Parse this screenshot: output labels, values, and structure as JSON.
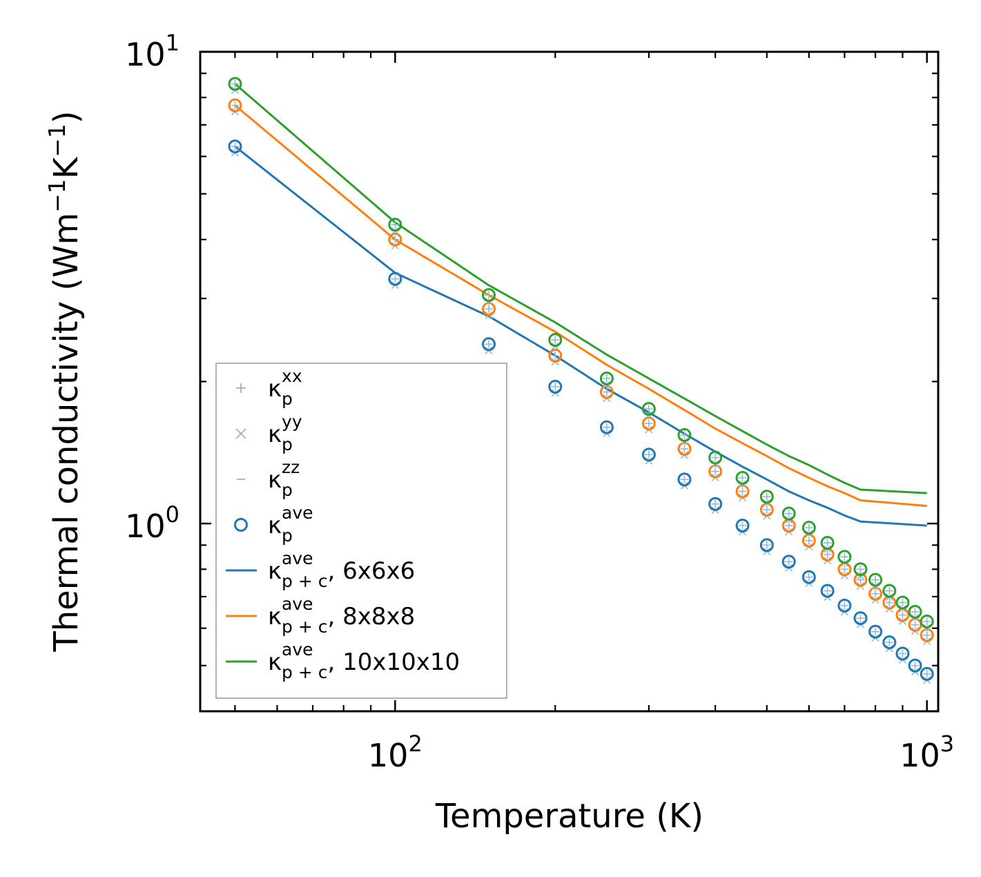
{
  "chart_data": {
    "type": "line",
    "xscale": "log",
    "yscale": "log",
    "xlim": [
      43,
      1050
    ],
    "ylim": [
      0.4,
      10
    ],
    "xlabel": "Temperature (K)",
    "ylabel": {
      "prefix": "Thermal conductivity (Wm",
      "sup1": "−1",
      "mid": "K",
      "sup2": "−1",
      "suffix": ")"
    },
    "x_ticks": [
      {
        "base": "10",
        "exp": "2",
        "value": 100
      },
      {
        "base": "10",
        "exp": "3",
        "value": 1000
      }
    ],
    "y_ticks": [
      {
        "base": "10",
        "exp": "0",
        "value": 1
      },
      {
        "base": "10",
        "exp": "1",
        "value": 10
      }
    ],
    "legend_position": "lower-left",
    "x": [
      50,
      100,
      150,
      200,
      250,
      300,
      350,
      400,
      450,
      500,
      550,
      600,
      650,
      700,
      750,
      800,
      850,
      900,
      950,
      1000
    ],
    "point_series": [
      {
        "name": "6x6x6",
        "color": "#1f77b4",
        "values": [
          6.3,
          3.3,
          2.4,
          1.95,
          1.6,
          1.4,
          1.24,
          1.1,
          0.99,
          0.9,
          0.83,
          0.77,
          0.72,
          0.67,
          0.63,
          0.59,
          0.56,
          0.53,
          0.5,
          0.48
        ]
      },
      {
        "name": "8x8x8",
        "color": "#ff7f0e",
        "values": [
          7.7,
          4.0,
          2.85,
          2.27,
          1.9,
          1.63,
          1.44,
          1.29,
          1.17,
          1.07,
          0.99,
          0.92,
          0.86,
          0.8,
          0.76,
          0.71,
          0.68,
          0.64,
          0.61,
          0.58
        ]
      },
      {
        "name": "10x10x10",
        "color": "#2ca02c",
        "values": [
          8.55,
          4.3,
          3.05,
          2.45,
          2.03,
          1.75,
          1.54,
          1.38,
          1.25,
          1.14,
          1.05,
          0.98,
          0.91,
          0.85,
          0.8,
          0.76,
          0.72,
          0.68,
          0.65,
          0.62
        ]
      }
    ],
    "line_series": [
      {
        "name": "6x6x6",
        "color": "#1f77b4",
        "values": [
          6.3,
          3.4,
          2.75,
          2.27,
          1.93,
          1.72,
          1.55,
          1.42,
          1.32,
          1.24,
          1.17,
          1.12,
          1.08,
          1.04,
          1.01,
          0.99
        ]
      },
      {
        "name": "8x8x8",
        "color": "#ff7f0e",
        "values": [
          7.7,
          4.0,
          3.05,
          2.55,
          2.17,
          1.93,
          1.74,
          1.59,
          1.48,
          1.39,
          1.31,
          1.25,
          1.2,
          1.16,
          1.12,
          1.09
        ]
      },
      {
        "name": "10x10x10",
        "color": "#2ca02c",
        "values": [
          8.55,
          4.35,
          3.2,
          2.67,
          2.28,
          2.03,
          1.84,
          1.69,
          1.57,
          1.47,
          1.39,
          1.33,
          1.27,
          1.22,
          1.18,
          1.16
        ]
      }
    ],
    "line_x": [
      50,
      100,
      150,
      200,
      250,
      300,
      350,
      400,
      450,
      500,
      550,
      600,
      650,
      700,
      750,
      1000
    ],
    "legend": [
      {
        "kind": "plus",
        "color": "#8fb4d4",
        "sym": "κ",
        "sub": "p",
        "sup": "xx",
        "tail": ""
      },
      {
        "kind": "cross",
        "color": "#8fb4d4",
        "sym": "κ",
        "sub": "p",
        "sup": "yy",
        "tail": ""
      },
      {
        "kind": "dash",
        "color": "#8fb4d4",
        "sym": "κ",
        "sub": "p",
        "sup": "zz",
        "tail": ""
      },
      {
        "kind": "circle",
        "color": "#1f77b4",
        "sym": "κ",
        "sub": "p",
        "sup": "ave",
        "tail": ""
      },
      {
        "kind": "line",
        "color": "#1f77b4",
        "sym": "κ",
        "sub": "p + c",
        "sup": "ave",
        "tail": ", 6x6x6"
      },
      {
        "kind": "line",
        "color": "#ff7f0e",
        "sym": "κ",
        "sub": "p + c",
        "sup": "ave",
        "tail": ", 8x8x8"
      },
      {
        "kind": "line",
        "color": "#2ca02c",
        "sym": "κ",
        "sub": "p + c",
        "sup": "ave",
        "tail": ", 10x10x10"
      }
    ],
    "component_marker_color": "#8fb4d4"
  }
}
